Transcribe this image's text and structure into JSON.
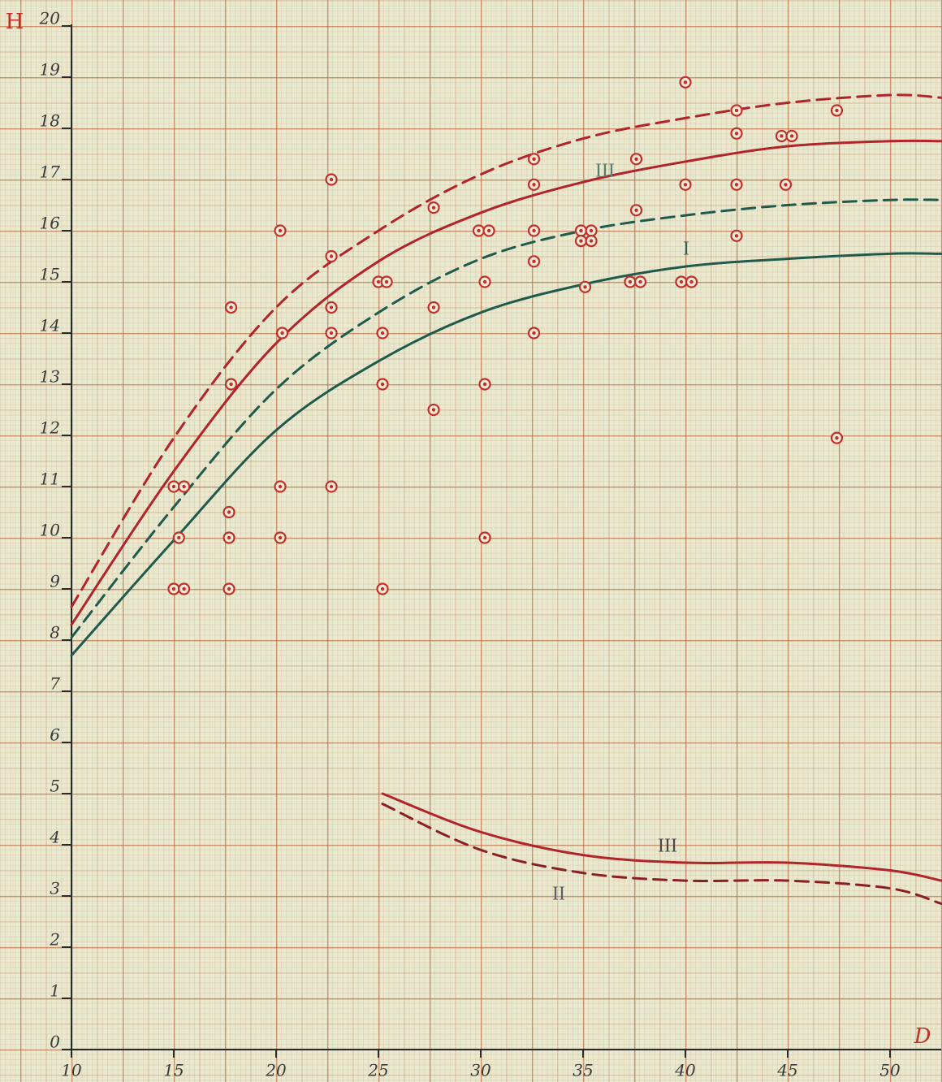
{
  "chart_data": {
    "type": "scatter",
    "x_label": "D",
    "y_label": "H",
    "color": "#c0302a",
    "x": [
      15,
      15.5,
      15.25,
      15,
      15.5,
      17.8,
      17.8,
      17.7,
      17.7,
      17.7,
      20.2,
      20.3,
      20.2,
      20.2,
      22.7,
      22.7,
      22.7,
      22.7,
      22.7,
      25,
      25.4,
      25.2,
      25.2,
      25.2,
      27.7,
      27.7,
      27.7,
      29.9,
      30.4,
      30.2,
      30.2,
      30.2,
      32.6,
      32.6,
      32.6,
      32.6,
      32.6,
      34.9,
      35.4,
      34.9,
      35.4,
      35.1,
      37.3,
      37.8,
      37.6,
      37.6,
      39.8,
      40.3,
      40,
      40,
      42.5,
      42.5,
      42.5,
      42.5,
      44.7,
      45.2,
      44.9,
      47.4,
      47.4
    ],
    "values": [
      11,
      11,
      10,
      9,
      9,
      14.5,
      13,
      10.5,
      10,
      9,
      16,
      14,
      11,
      10,
      17,
      15.5,
      14.5,
      14,
      11,
      15,
      15,
      14,
      13,
      9,
      16.45,
      14.5,
      12.5,
      16,
      16,
      15,
      13,
      10,
      17.4,
      16.9,
      16,
      15.4,
      14,
      16,
      16,
      15.8,
      15.8,
      14.9,
      15,
      15,
      17.4,
      16.4,
      15,
      15,
      18.9,
      16.9,
      18.35,
      17.9,
      16.9,
      15.9,
      17.85,
      17.85,
      16.9,
      18.35,
      11.95
    ],
    "series": [
      {
        "type": "line",
        "color": "#b0242a",
        "dashed": true,
        "x": [
          10,
          15,
          20,
          25,
          30,
          35,
          40,
          45,
          50,
          52.5
        ],
        "values": [
          8.65,
          11.95,
          14.5,
          16.0,
          17.1,
          17.8,
          18.2,
          18.5,
          18.65,
          18.6
        ]
      },
      {
        "type": "line",
        "color": "#b0242a",
        "dashed": false,
        "x": [
          10,
          15,
          20,
          25,
          30,
          35,
          40,
          45,
          50,
          52.5
        ],
        "values": [
          8.3,
          11.3,
          13.8,
          15.4,
          16.35,
          16.95,
          17.35,
          17.65,
          17.75,
          17.75
        ]
      },
      {
        "type": "line",
        "color": "#1f5a4c",
        "dashed": true,
        "x": [
          10,
          15,
          20,
          25,
          30,
          35,
          40,
          45,
          50,
          52.5
        ],
        "values": [
          8.05,
          10.6,
          12.9,
          14.4,
          15.45,
          16.0,
          16.3,
          16.5,
          16.6,
          16.6
        ]
      },
      {
        "type": "line",
        "color": "#1f5a4c",
        "dashed": false,
        "x": [
          10,
          15,
          20,
          25,
          30,
          35,
          40,
          45,
          50,
          52.5
        ],
        "values": [
          7.7,
          9.95,
          12.1,
          13.45,
          14.4,
          14.95,
          15.3,
          15.45,
          15.55,
          15.55
        ]
      },
      {
        "type": "line",
        "color": "#b0242a",
        "dashed": false,
        "x": [
          25.2,
          30,
          35,
          40,
          45,
          50,
          52.5
        ],
        "values": [
          5.0,
          4.25,
          3.8,
          3.65,
          3.65,
          3.5,
          3.3
        ]
      },
      {
        "type": "line",
        "color": "#8a1f24",
        "dashed": true,
        "x": [
          25.2,
          30,
          35,
          40,
          45,
          50,
          52.5
        ],
        "values": [
          4.8,
          3.9,
          3.45,
          3.3,
          3.3,
          3.15,
          2.85
        ]
      }
    ],
    "annotations": [
      "III",
      "I",
      "III",
      "II"
    ],
    "xlim": [
      10,
      52.5
    ],
    "ylim": [
      0,
      20.5
    ],
    "xticks": [
      10,
      15,
      20,
      25,
      30,
      35,
      40,
      45,
      50
    ],
    "yticks": [
      0,
      1,
      2,
      3,
      4,
      5,
      6,
      7,
      8,
      9,
      10,
      11,
      12,
      13,
      14,
      15,
      16,
      17,
      18,
      19,
      20
    ]
  }
}
